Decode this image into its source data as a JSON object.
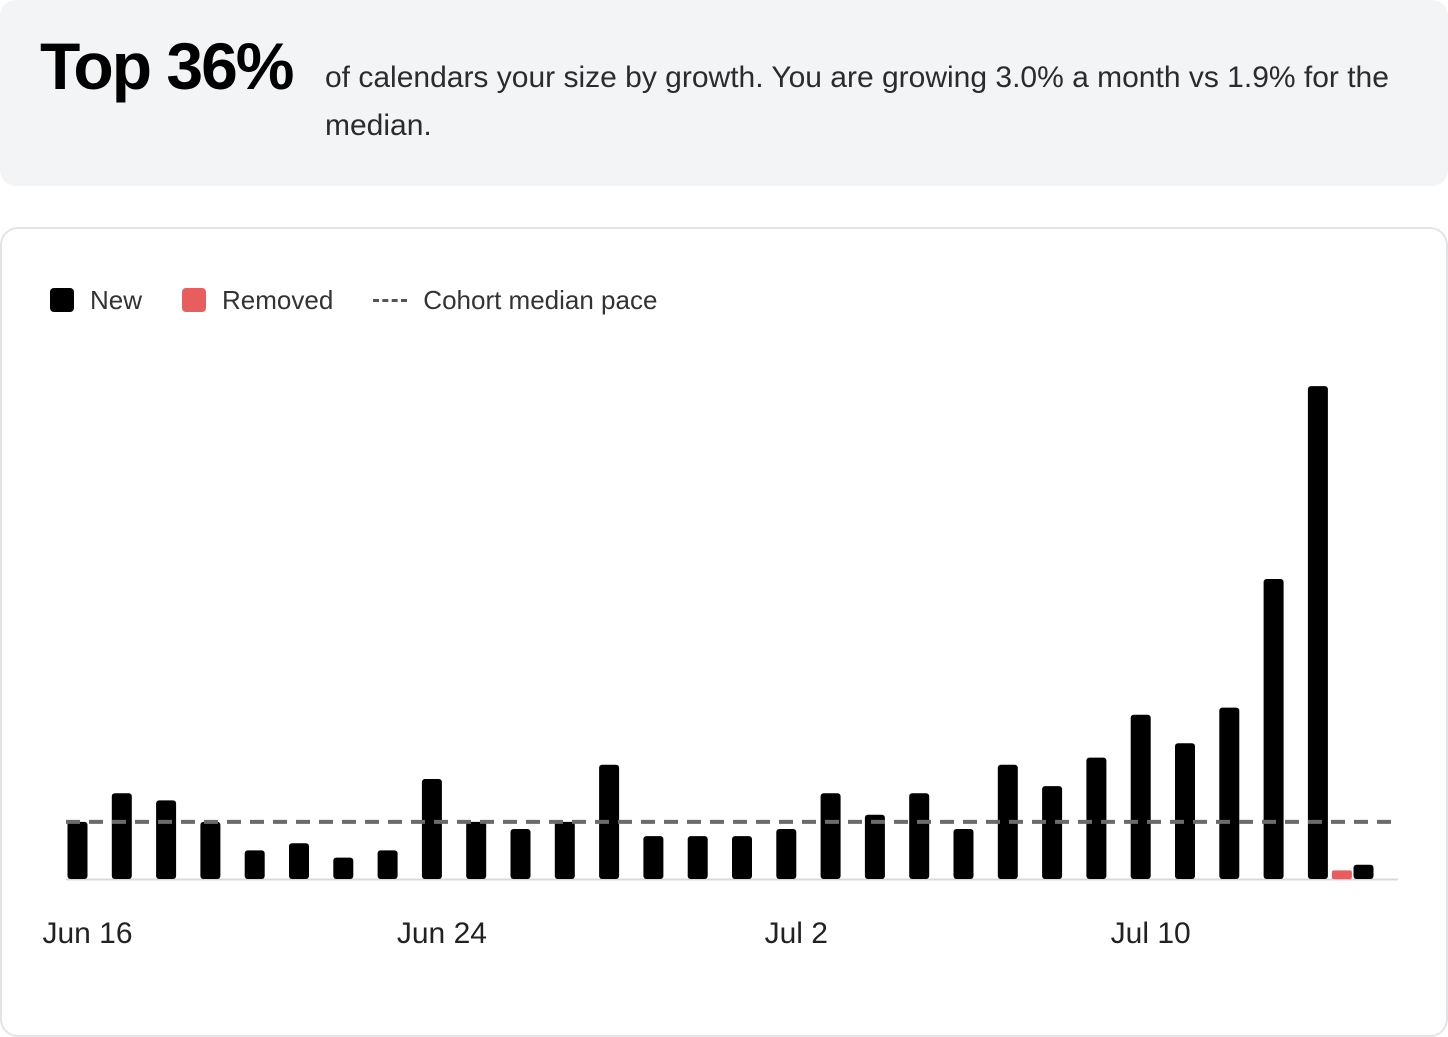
{
  "summary": {
    "headline": "Top 36%",
    "description": "of calendars your size by growth. You are growing 3.0% a month vs 1.9% for the median."
  },
  "colors": {
    "new": "#000000",
    "removed": "#e85d5d",
    "median_line": "#6b6b6b",
    "axis": "#d9d9d9"
  },
  "legend": {
    "new_label": "New",
    "removed_label": "Removed",
    "median_label": "Cohort median pace"
  },
  "chart_data": {
    "type": "bar",
    "title": "",
    "xlabel": "",
    "ylabel": "",
    "ylim": [
      0,
      35
    ],
    "grid": false,
    "legend_position": "top-left",
    "x_tick_labels": [
      "Jun 16",
      "Jun 24",
      "Jul 2",
      "Jul 10"
    ],
    "x_tick_indices": [
      0,
      8,
      16,
      24
    ],
    "categories": [
      "Jun 16",
      "Jun 17",
      "Jun 18",
      "Jun 19",
      "Jun 20",
      "Jun 21",
      "Jun 22",
      "Jun 23",
      "Jun 24",
      "Jun 25",
      "Jun 26",
      "Jun 27",
      "Jun 28",
      "Jun 29",
      "Jun 30",
      "Jul 1",
      "Jul 2",
      "Jul 3",
      "Jul 4",
      "Jul 5",
      "Jul 6",
      "Jul 7",
      "Jul 8",
      "Jul 9",
      "Jul 10",
      "Jul 11",
      "Jul 12",
      "Jul 13",
      "Jul 14",
      "Jul 15"
    ],
    "series": [
      {
        "name": "New",
        "values": [
          4,
          6,
          5.5,
          4,
          2,
          2.5,
          1.5,
          2,
          7,
          4,
          3.5,
          4,
          8,
          3,
          3,
          3,
          3.5,
          6,
          4.5,
          6,
          3.5,
          8,
          6.5,
          8.5,
          11.5,
          9.5,
          12,
          21,
          34.5,
          1
        ]
      },
      {
        "name": "Removed",
        "values": [
          0,
          0,
          0,
          0,
          0,
          0,
          0,
          0,
          0,
          0,
          0,
          0,
          0,
          0,
          0,
          0,
          0,
          0,
          0,
          0,
          0,
          0,
          0,
          0,
          0,
          0,
          0,
          0,
          0.6,
          0
        ]
      },
      {
        "name": "Cohort median pace",
        "values": [
          4,
          4,
          4,
          4,
          4,
          4,
          4,
          4,
          4,
          4,
          4,
          4,
          4,
          4,
          4,
          4,
          4,
          4,
          4,
          4,
          4,
          4,
          4,
          4,
          4,
          4,
          4,
          4,
          4,
          4
        ]
      }
    ]
  }
}
